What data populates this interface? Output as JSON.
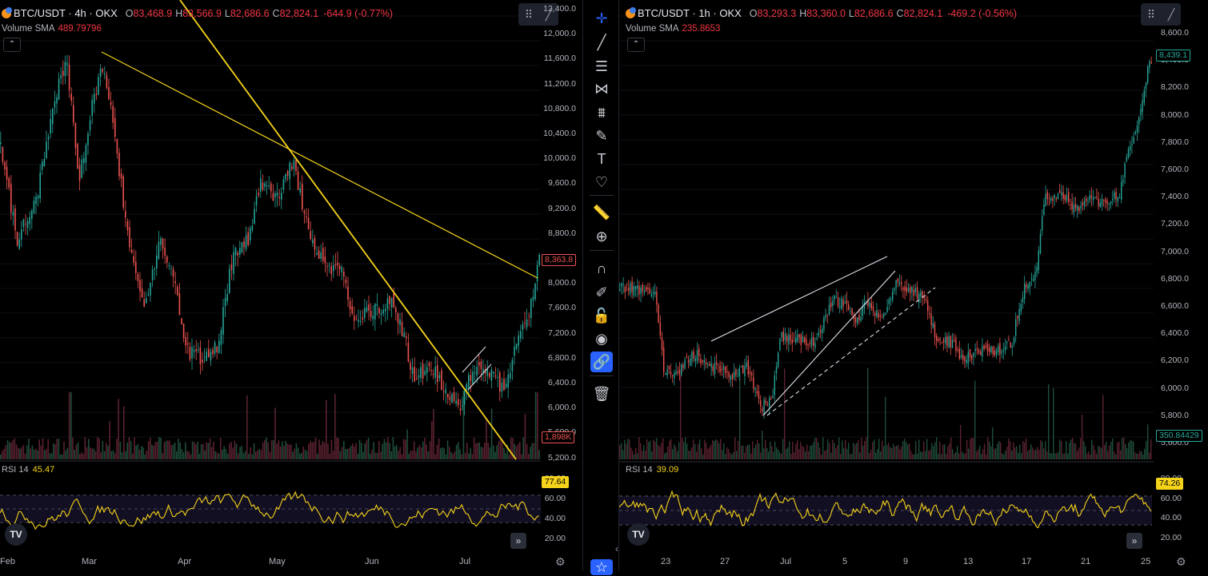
{
  "left": {
    "symbol": "BTC/USDT · 4h · OKX",
    "open_label": "O",
    "open": "83,468.9",
    "high_label": "H",
    "high": "83,566.9",
    "low_label": "L",
    "low": "82,686.6",
    "close_label": "C",
    "close": "82,824.1",
    "change": "-644.9 (-0.77%)",
    "volume_label": "Volume",
    "sma_label": "SMA",
    "volume_sma": "489.79796",
    "yaxis": [
      "12,400.0",
      "12,000.0",
      "11,600.0",
      "11,200.0",
      "10,800.0",
      "10,400.0",
      "10,000.0",
      "9,600.0",
      "9,200.0",
      "8,800.0",
      "8,400.0",
      "8,000.0",
      "7,600.0",
      "7,200.0",
      "6,800.0",
      "6,400.0",
      "6,000.0",
      "5,600.0",
      "5,200.0"
    ],
    "price_tag": "8,363.8",
    "vol_tag": "1,898K",
    "rsi_label": "RSI",
    "rsi_len": "14",
    "rsi_value": "45.47",
    "rsi_tag": "77.64",
    "rsi_axis": [
      "80.00",
      "60.00",
      "40.00",
      "20.00"
    ],
    "xaxis": [
      "Feb",
      "Mar",
      "Apr",
      "May",
      "Jun",
      "Jul"
    ]
  },
  "right": {
    "symbol": "BTC/USDT · 1h · OKX",
    "open_label": "O",
    "open": "83,293.3",
    "high_label": "H",
    "high": "83,360.0",
    "low_label": "L",
    "low": "82,686.6",
    "close_label": "C",
    "close": "82,824.1",
    "change": "-469.2 (-0.56%)",
    "volume_label": "Volume",
    "sma_label": "SMA",
    "volume_sma": "235.8653",
    "yaxis": [
      "8,600.0",
      "8,400.0",
      "8,200.0",
      "8,000.0",
      "7,800.0",
      "7,600.0",
      "7,400.0",
      "7,200.0",
      "7,000.0",
      "6,800.0",
      "6,600.0",
      "6,400.0",
      "6,200.0",
      "6,000.0",
      "5,800.0",
      "5,600.0"
    ],
    "price_tag": "8,439.1",
    "vol_tag": "350.84429",
    "rsi_label": "RSI",
    "rsi_len": "14",
    "rsi_value": "39.09",
    "rsi_tag": "74.26",
    "rsi_axis": [
      "80.00",
      "60.00",
      "40.00",
      "20.00"
    ],
    "xaxis": [
      "23",
      "27",
      "Jul",
      "5",
      "9",
      "13",
      "17",
      "21",
      "25"
    ]
  },
  "toolbar": {
    "icons": [
      "crosshair-icon",
      "trend-line-icon",
      "fib-retracement-icon",
      "pattern-icon",
      "prediction-icon",
      "brush-icon",
      "text-icon",
      "heart-icon",
      "ruler-icon",
      "zoom-in-icon",
      "magnet-icon",
      "lock-drawing-icon",
      "lock-icon",
      "eye-icon",
      "link-icon",
      "trash-icon",
      "star-icon"
    ],
    "active": "link-icon"
  },
  "colors": {
    "up": "#26a69a",
    "down": "#ef5350",
    "trend": "#f5d31a",
    "rsi": "#f5d31a",
    "accent": "#2962ff"
  }
}
